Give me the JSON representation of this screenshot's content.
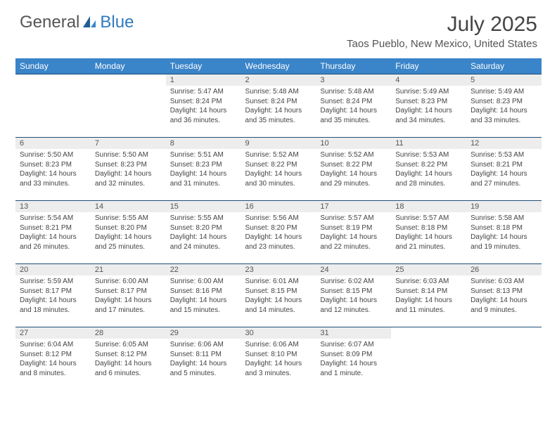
{
  "logo": {
    "text_left": "General",
    "text_right": "Blue"
  },
  "header": {
    "title": "July 2025",
    "location": "Taos Pueblo, New Mexico, United States"
  },
  "colors": {
    "header_bg": "#3a84c9",
    "header_fg": "#ffffff",
    "row_border": "#1e4f7a",
    "daynum_bg": "#ededed",
    "logo_blue": "#2f7abf"
  },
  "weekday_labels": [
    "Sunday",
    "Monday",
    "Tuesday",
    "Wednesday",
    "Thursday",
    "Friday",
    "Saturday"
  ],
  "weeks": [
    [
      null,
      null,
      {
        "n": "1",
        "sr": "Sunrise: 5:47 AM",
        "ss": "Sunset: 8:24 PM",
        "dl": "Daylight: 14 hours and 36 minutes."
      },
      {
        "n": "2",
        "sr": "Sunrise: 5:48 AM",
        "ss": "Sunset: 8:24 PM",
        "dl": "Daylight: 14 hours and 35 minutes."
      },
      {
        "n": "3",
        "sr": "Sunrise: 5:48 AM",
        "ss": "Sunset: 8:24 PM",
        "dl": "Daylight: 14 hours and 35 minutes."
      },
      {
        "n": "4",
        "sr": "Sunrise: 5:49 AM",
        "ss": "Sunset: 8:23 PM",
        "dl": "Daylight: 14 hours and 34 minutes."
      },
      {
        "n": "5",
        "sr": "Sunrise: 5:49 AM",
        "ss": "Sunset: 8:23 PM",
        "dl": "Daylight: 14 hours and 33 minutes."
      }
    ],
    [
      {
        "n": "6",
        "sr": "Sunrise: 5:50 AM",
        "ss": "Sunset: 8:23 PM",
        "dl": "Daylight: 14 hours and 33 minutes."
      },
      {
        "n": "7",
        "sr": "Sunrise: 5:50 AM",
        "ss": "Sunset: 8:23 PM",
        "dl": "Daylight: 14 hours and 32 minutes."
      },
      {
        "n": "8",
        "sr": "Sunrise: 5:51 AM",
        "ss": "Sunset: 8:23 PM",
        "dl": "Daylight: 14 hours and 31 minutes."
      },
      {
        "n": "9",
        "sr": "Sunrise: 5:52 AM",
        "ss": "Sunset: 8:22 PM",
        "dl": "Daylight: 14 hours and 30 minutes."
      },
      {
        "n": "10",
        "sr": "Sunrise: 5:52 AM",
        "ss": "Sunset: 8:22 PM",
        "dl": "Daylight: 14 hours and 29 minutes."
      },
      {
        "n": "11",
        "sr": "Sunrise: 5:53 AM",
        "ss": "Sunset: 8:22 PM",
        "dl": "Daylight: 14 hours and 28 minutes."
      },
      {
        "n": "12",
        "sr": "Sunrise: 5:53 AM",
        "ss": "Sunset: 8:21 PM",
        "dl": "Daylight: 14 hours and 27 minutes."
      }
    ],
    [
      {
        "n": "13",
        "sr": "Sunrise: 5:54 AM",
        "ss": "Sunset: 8:21 PM",
        "dl": "Daylight: 14 hours and 26 minutes."
      },
      {
        "n": "14",
        "sr": "Sunrise: 5:55 AM",
        "ss": "Sunset: 8:20 PM",
        "dl": "Daylight: 14 hours and 25 minutes."
      },
      {
        "n": "15",
        "sr": "Sunrise: 5:55 AM",
        "ss": "Sunset: 8:20 PM",
        "dl": "Daylight: 14 hours and 24 minutes."
      },
      {
        "n": "16",
        "sr": "Sunrise: 5:56 AM",
        "ss": "Sunset: 8:20 PM",
        "dl": "Daylight: 14 hours and 23 minutes."
      },
      {
        "n": "17",
        "sr": "Sunrise: 5:57 AM",
        "ss": "Sunset: 8:19 PM",
        "dl": "Daylight: 14 hours and 22 minutes."
      },
      {
        "n": "18",
        "sr": "Sunrise: 5:57 AM",
        "ss": "Sunset: 8:18 PM",
        "dl": "Daylight: 14 hours and 21 minutes."
      },
      {
        "n": "19",
        "sr": "Sunrise: 5:58 AM",
        "ss": "Sunset: 8:18 PM",
        "dl": "Daylight: 14 hours and 19 minutes."
      }
    ],
    [
      {
        "n": "20",
        "sr": "Sunrise: 5:59 AM",
        "ss": "Sunset: 8:17 PM",
        "dl": "Daylight: 14 hours and 18 minutes."
      },
      {
        "n": "21",
        "sr": "Sunrise: 6:00 AM",
        "ss": "Sunset: 8:17 PM",
        "dl": "Daylight: 14 hours and 17 minutes."
      },
      {
        "n": "22",
        "sr": "Sunrise: 6:00 AM",
        "ss": "Sunset: 8:16 PM",
        "dl": "Daylight: 14 hours and 15 minutes."
      },
      {
        "n": "23",
        "sr": "Sunrise: 6:01 AM",
        "ss": "Sunset: 8:15 PM",
        "dl": "Daylight: 14 hours and 14 minutes."
      },
      {
        "n": "24",
        "sr": "Sunrise: 6:02 AM",
        "ss": "Sunset: 8:15 PM",
        "dl": "Daylight: 14 hours and 12 minutes."
      },
      {
        "n": "25",
        "sr": "Sunrise: 6:03 AM",
        "ss": "Sunset: 8:14 PM",
        "dl": "Daylight: 14 hours and 11 minutes."
      },
      {
        "n": "26",
        "sr": "Sunrise: 6:03 AM",
        "ss": "Sunset: 8:13 PM",
        "dl": "Daylight: 14 hours and 9 minutes."
      }
    ],
    [
      {
        "n": "27",
        "sr": "Sunrise: 6:04 AM",
        "ss": "Sunset: 8:12 PM",
        "dl": "Daylight: 14 hours and 8 minutes."
      },
      {
        "n": "28",
        "sr": "Sunrise: 6:05 AM",
        "ss": "Sunset: 8:12 PM",
        "dl": "Daylight: 14 hours and 6 minutes."
      },
      {
        "n": "29",
        "sr": "Sunrise: 6:06 AM",
        "ss": "Sunset: 8:11 PM",
        "dl": "Daylight: 14 hours and 5 minutes."
      },
      {
        "n": "30",
        "sr": "Sunrise: 6:06 AM",
        "ss": "Sunset: 8:10 PM",
        "dl": "Daylight: 14 hours and 3 minutes."
      },
      {
        "n": "31",
        "sr": "Sunrise: 6:07 AM",
        "ss": "Sunset: 8:09 PM",
        "dl": "Daylight: 14 hours and 1 minute."
      },
      null,
      null
    ]
  ]
}
